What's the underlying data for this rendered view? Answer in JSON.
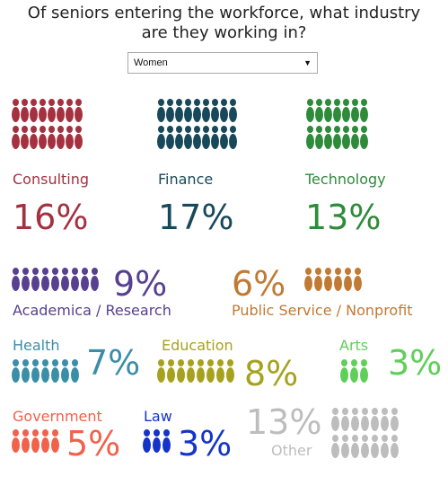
{
  "title_line1": "Of seniors entering the workforce, what industry",
  "title_line2": "are they working in?",
  "select": {
    "value": "Women",
    "arrow": "▼"
  },
  "industries": [
    {
      "key": "consulting",
      "label": "Consulting",
      "pct": "16%",
      "color": "#a4313f"
    },
    {
      "key": "finance",
      "label": "Finance",
      "pct": "17%",
      "color": "#18495a"
    },
    {
      "key": "technology",
      "label": "Technology",
      "pct": "13%",
      "color": "#2e8b3a"
    },
    {
      "key": "academica",
      "label": "Academica / Research",
      "pct": "9%",
      "color": "#57408f"
    },
    {
      "key": "public",
      "label": "Public Service / Nonprofit",
      "pct": "6%",
      "color": "#c17a33"
    },
    {
      "key": "health",
      "label": "Health",
      "pct": "7%",
      "color": "#3a8ea8"
    },
    {
      "key": "education",
      "label": "Education",
      "pct": "8%",
      "color": "#a6a21f"
    },
    {
      "key": "arts",
      "label": "Arts",
      "pct": "3%",
      "color": "#5fcf5a"
    },
    {
      "key": "government",
      "label": "Government",
      "pct": "5%",
      "color": "#f2614a"
    },
    {
      "key": "law",
      "label": "Law",
      "pct": "3%",
      "color": "#1434c9"
    },
    {
      "key": "other",
      "label": "Other",
      "pct": "13%",
      "color": "#bdbdbd"
    }
  ]
}
